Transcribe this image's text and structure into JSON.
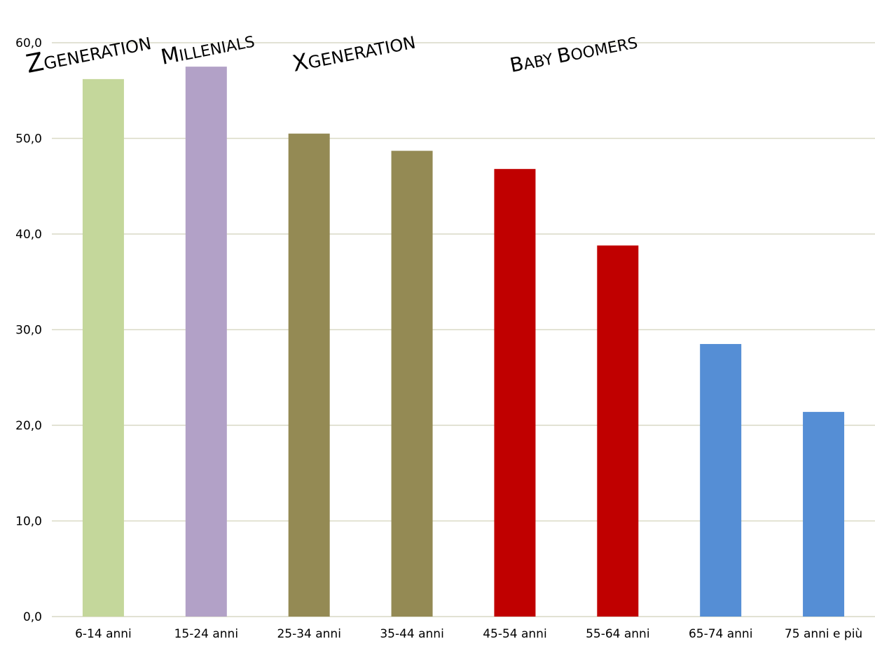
{
  "chart_data": {
    "type": "bar",
    "categories": [
      "6-14 anni",
      "15-24 anni",
      "25-34 anni",
      "35-44 anni",
      "45-54 anni",
      "55-64 anni",
      "65-74 anni",
      "75 anni e più"
    ],
    "values": [
      56.2,
      57.5,
      50.5,
      48.7,
      46.8,
      38.8,
      28.5,
      21.4
    ],
    "colors": [
      "#c4d79b",
      "#b2a1c7",
      "#948a54",
      "#948a54",
      "#c00000",
      "#c00000",
      "#558ed5",
      "#558ed5"
    ],
    "ylim": [
      0,
      60
    ],
    "yticks": [
      "0,0",
      "10,0",
      "20,0",
      "30,0",
      "40,0",
      "50,0",
      "60,0"
    ],
    "grid": true,
    "generation_labels": [
      {
        "big": "Z",
        "small": "Generation",
        "spans": "6-14 anni"
      },
      {
        "big": "M",
        "small": "illenials",
        "spans": "15-24 anni"
      },
      {
        "big": "X",
        "small": "Generation",
        "spans": "25-44 anni"
      },
      {
        "big": "B",
        "small": "aby ",
        "big2": "B",
        "small2": "oomers",
        "spans": "45-64 anni"
      }
    ]
  }
}
